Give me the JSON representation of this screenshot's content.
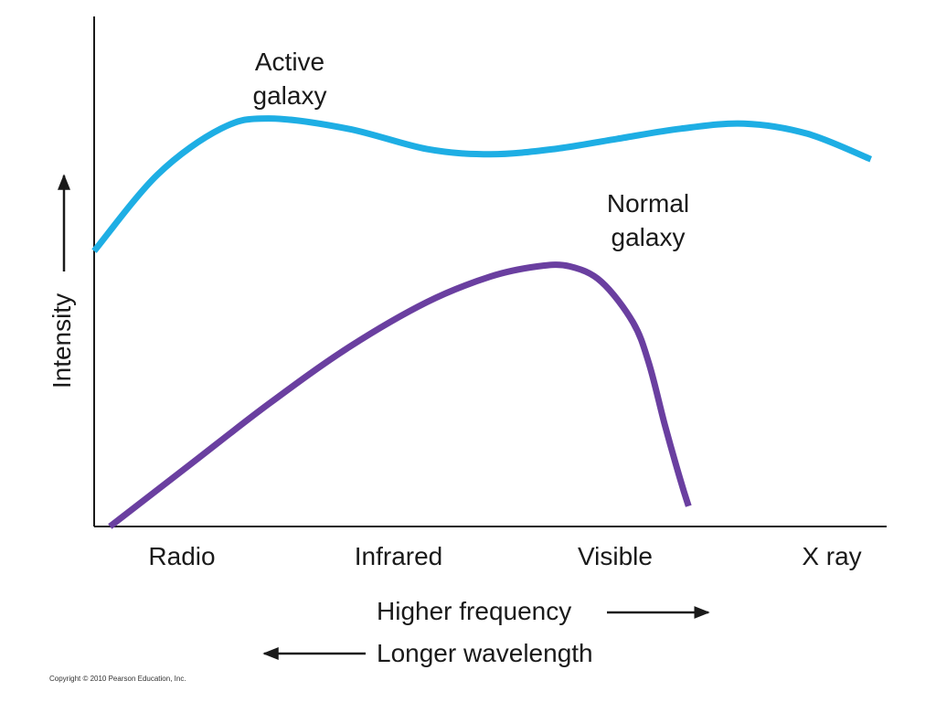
{
  "chart_data": {
    "type": "line",
    "categories": [
      "Radio",
      "Infrared",
      "Visible",
      "X ray"
    ],
    "ylabel": "Intensity",
    "xlabel_primary": "Higher frequency",
    "xlabel_secondary": "Longer wavelength",
    "ylim": [
      0,
      1
    ],
    "series": [
      {
        "name": "Active galaxy",
        "label_lines": [
          "Active",
          "galaxy"
        ],
        "color": "#1eaee4",
        "x": [
          0.0,
          0.08,
          0.16,
          0.22,
          0.32,
          0.42,
          0.5,
          0.58,
          0.66,
          0.74,
          0.82,
          0.9,
          0.98
        ],
        "y": [
          0.54,
          0.69,
          0.78,
          0.8,
          0.78,
          0.74,
          0.73,
          0.74,
          0.76,
          0.78,
          0.79,
          0.77,
          0.72
        ]
      },
      {
        "name": "Normal galaxy",
        "label_lines": [
          "Normal",
          "galaxy"
        ],
        "color": "#6a3fa0",
        "x": [
          0.02,
          0.12,
          0.22,
          0.32,
          0.42,
          0.5,
          0.56,
          0.6,
          0.64,
          0.68,
          0.7,
          0.72,
          0.74,
          0.75
        ],
        "y": [
          0.0,
          0.12,
          0.24,
          0.35,
          0.44,
          0.49,
          0.51,
          0.51,
          0.48,
          0.4,
          0.32,
          0.2,
          0.09,
          0.04
        ]
      }
    ]
  },
  "footer": {
    "copyright": "Copyright © 2010 Pearson Education, Inc."
  },
  "colors": {
    "axis": "#1a1a1a",
    "text": "#1a1a1a"
  }
}
